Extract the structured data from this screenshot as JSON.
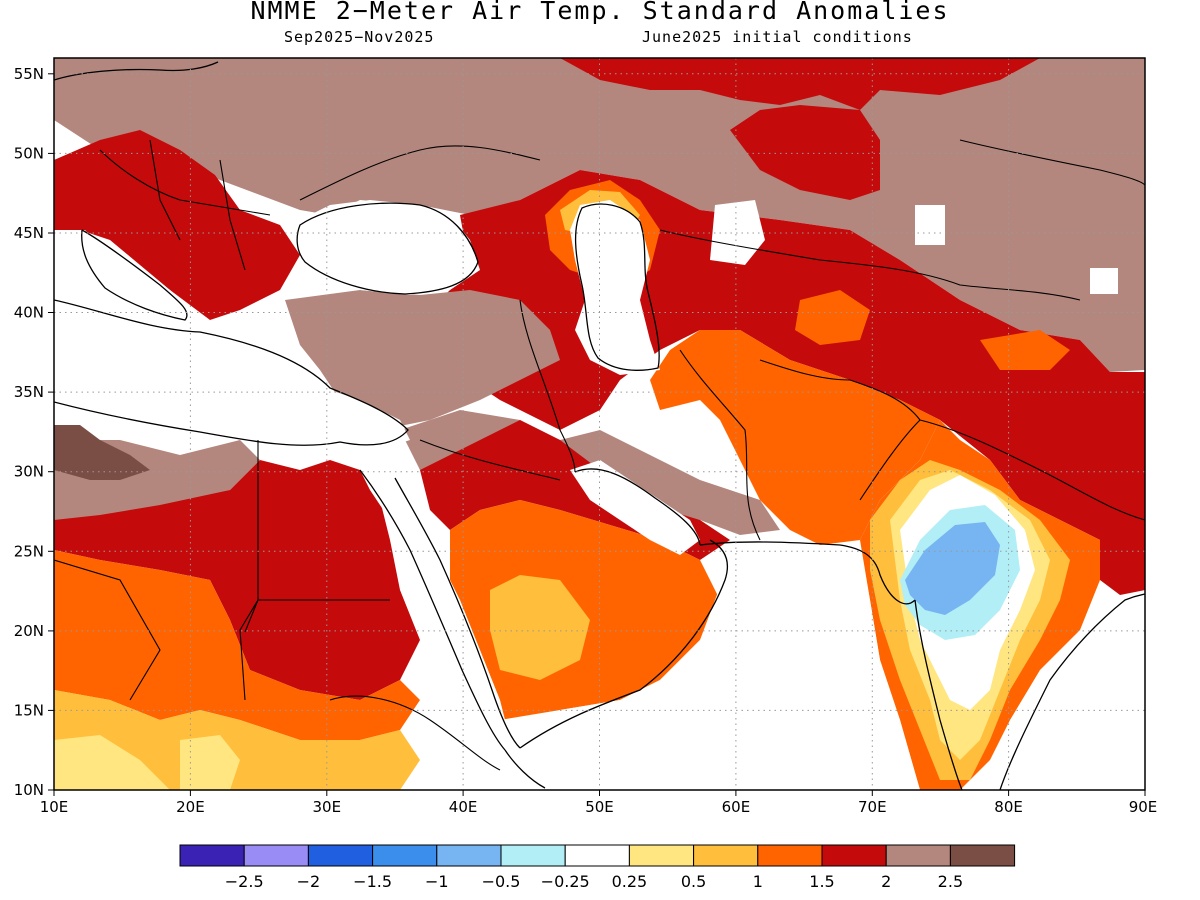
{
  "title": "NMME 2−Meter Air Temp. Standard Anomalies",
  "subtitle_left": "Sep2025−Nov2025",
  "subtitle_right": "June2025 initial conditions",
  "map": {
    "lon_range": [
      10,
      90
    ],
    "lat_range": [
      10,
      56
    ],
    "x_ticks": [
      "10E",
      "20E",
      "30E",
      "40E",
      "50E",
      "60E",
      "70E",
      "80E",
      "90E"
    ],
    "y_ticks": [
      "10N",
      "15N",
      "20N",
      "25N",
      "30N",
      "35N",
      "40N",
      "45N",
      "50N",
      "55N"
    ],
    "grid": "dotted every 10 degrees longitude and 5 degrees latitude"
  },
  "colorbar": {
    "colors": [
      "#3a22b4",
      "#9a8cf5",
      "#1f5fe0",
      "#3c8eec",
      "#76b4f2",
      "#b2eef6",
      "#ffffff",
      "#ffe680",
      "#ffbe3c",
      "#ff6400",
      "#c40a0a",
      "#b3877e",
      "#7a4e44"
    ],
    "labels": [
      "−2.5",
      "−2",
      "−1.5",
      "−1",
      "−0.5",
      "−0.25",
      "0.25",
      "0.5",
      "1",
      "1.5",
      "2",
      "2.5"
    ]
  },
  "palette": {
    "land_white": "#ffffff",
    "pale_yellow": "#ffe680",
    "light_orange": "#ffbe3c",
    "orange": "#ff6400",
    "dark_red": "#c40a0a",
    "light_brown": "#b3877e",
    "dark_brown": "#7a4e44",
    "light_cyan": "#b2eef6",
    "light_blue": "#76b4f2"
  }
}
